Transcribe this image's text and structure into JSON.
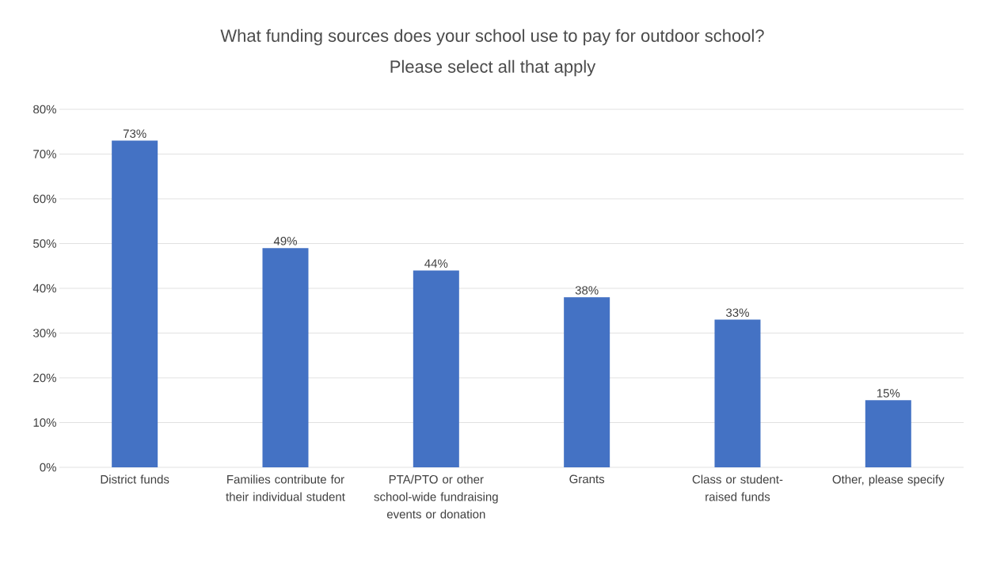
{
  "chart_data": {
    "type": "bar",
    "title": "What funding sources does your school use to pay for outdoor school?",
    "subtitle": "Please select all that apply",
    "categories": [
      "District funds",
      "Families contribute for their individual student",
      "PTA/PTO or other school-wide fundraising events or donation",
      "Grants",
      "Class or student-raised funds",
      "Other, please specify"
    ],
    "values": [
      73,
      49,
      44,
      38,
      33,
      15
    ],
    "value_labels": [
      "73%",
      "49%",
      "44%",
      "38%",
      "33%",
      "15%"
    ],
    "color": "#4472c4",
    "ylim": [
      0,
      80
    ],
    "yticks": [
      {
        "value": 0,
        "label": "0%"
      },
      {
        "value": 10,
        "label": "10%"
      },
      {
        "value": 20,
        "label": "20%"
      },
      {
        "value": 30,
        "label": "30%"
      },
      {
        "value": 40,
        "label": "40%"
      },
      {
        "value": 50,
        "label": "50%"
      },
      {
        "value": 60,
        "label": "60%"
      },
      {
        "value": 70,
        "label": "70%"
      },
      {
        "value": 80,
        "label": "80%"
      }
    ],
    "grid": "y"
  }
}
